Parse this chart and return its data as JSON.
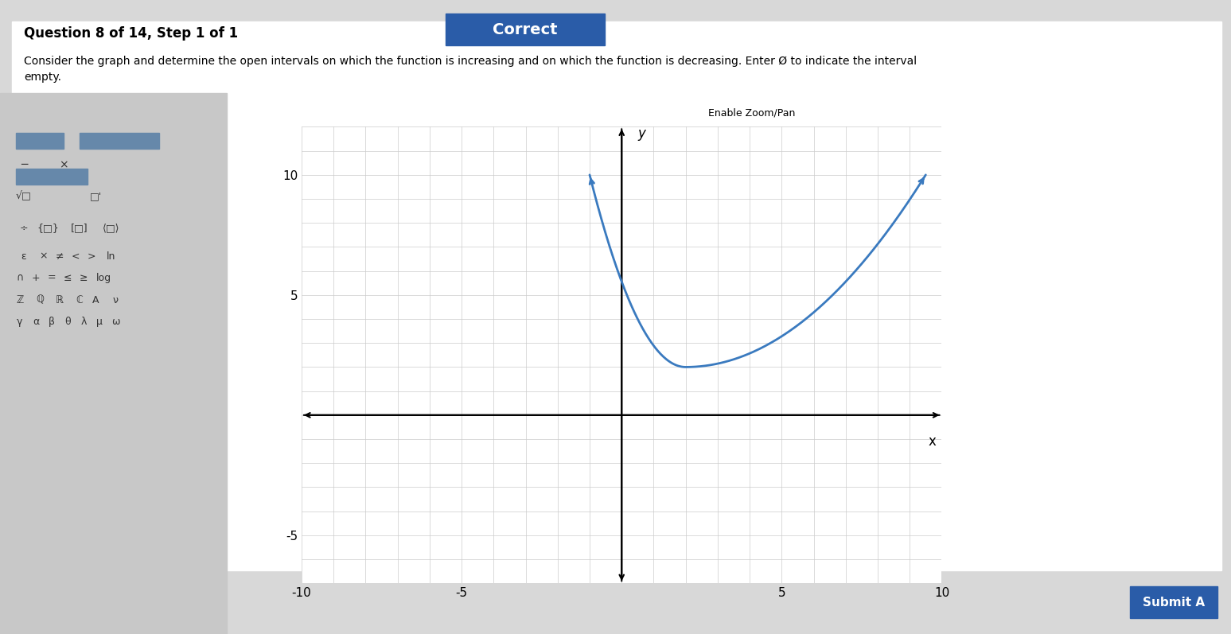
{
  "title": "Question 8 of 14, Step 1 of 1",
  "question_text": "Consider the graph and determine the open intervals on which the function is increasing and on which the function is decreasing. Enter Ø to indicate the interval\nempty.",
  "enable_zoom_pan": "Enable Zoom/Pan",
  "graph": {
    "xlim": [
      -10,
      10
    ],
    "ylim": [
      -7,
      12
    ],
    "xticks": [
      -10,
      -5,
      0,
      5,
      10
    ],
    "yticks": [
      -5,
      0,
      5,
      10
    ],
    "xlabel": "x",
    "ylabel": "y",
    "curve_color": "#3a7abf",
    "curve_linewidth": 2.0,
    "x_start": -1.0,
    "x_end": 9.5,
    "local_min_x": 2.0,
    "local_min_y": 2.0,
    "start_y": 10.0,
    "grid_color": "#cccccc",
    "grid_linewidth": 0.5,
    "background_color": "#ffffff",
    "panel_bg": "#e8e8e8"
  },
  "sidebar": {
    "bg_color": "#e0e0e0",
    "button_color": "#888888"
  },
  "submit_button": {
    "text": "Submit A",
    "color": "#2a5ca8",
    "text_color": "#ffffff"
  },
  "correct_banner": {
    "text": "Correct",
    "color": "#2a5ca8",
    "text_color": "#ffffff"
  }
}
